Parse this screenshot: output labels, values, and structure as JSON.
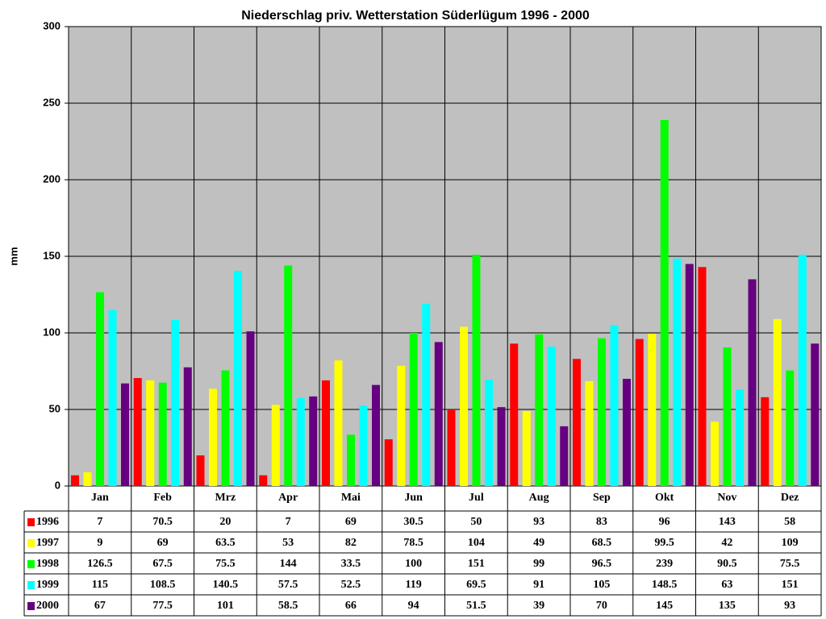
{
  "chart_data": {
    "type": "bar",
    "title": "Niederschlag priv. Wetterstation Süderlügum 1996 - 2000",
    "y_label": "mm",
    "categories": [
      "Jan",
      "Feb",
      "Mrz",
      "Apr",
      "Mai",
      "Jun",
      "Jul",
      "Aug",
      "Sep",
      "Okt",
      "Nov",
      "Dez"
    ],
    "series": [
      {
        "name": "1996",
        "color": "#ff0000",
        "values": [
          7,
          70.5,
          20,
          7,
          69,
          30.5,
          50,
          93,
          83,
          96,
          143,
          58
        ]
      },
      {
        "name": "1997",
        "color": "#ffff00",
        "values": [
          9,
          69,
          63.5,
          53,
          82,
          78.5,
          104,
          49,
          68.5,
          99.5,
          42,
          109
        ]
      },
      {
        "name": "1998",
        "color": "#00ff00",
        "values": [
          126.5,
          67.5,
          75.5,
          144,
          33.5,
          100,
          151,
          99,
          96.5,
          239,
          90.5,
          75.5
        ]
      },
      {
        "name": "1999",
        "color": "#00ffff",
        "values": [
          115,
          108.5,
          140.5,
          57.5,
          52.5,
          119,
          69.5,
          91,
          105,
          148.5,
          63,
          151
        ]
      },
      {
        "name": "2000",
        "color": "#660080",
        "values": [
          67,
          77.5,
          101,
          58.5,
          66,
          94,
          51.5,
          39,
          70,
          145,
          135,
          93
        ]
      }
    ],
    "ylim": [
      0,
      300
    ],
    "yticks": [
      0,
      50,
      100,
      150,
      200,
      250,
      300
    ],
    "grid": true
  }
}
